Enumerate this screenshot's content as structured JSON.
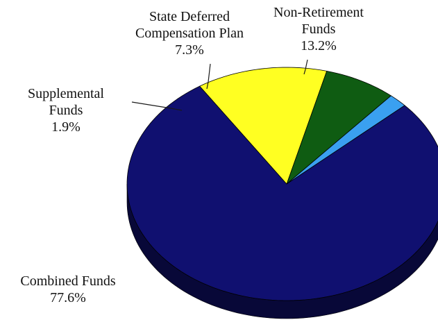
{
  "chart_data": {
    "type": "pie",
    "style": "3d",
    "title": "",
    "slices": [
      {
        "label_lines": [
          "Combined Funds"
        ],
        "value_text": "77.6%",
        "value": 77.6,
        "color": "#101070",
        "side_color": "#080838"
      },
      {
        "label_lines": [
          "Supplemental",
          "Funds"
        ],
        "value_text": "1.9%",
        "value": 1.9,
        "color": "#3aa0f0",
        "side_color": "#1f5f99"
      },
      {
        "label_lines": [
          "State Deferred",
          "Compensation Plan"
        ],
        "value_text": "7.3%",
        "value": 7.3,
        "color": "#0f5c12",
        "side_color": "#073008"
      },
      {
        "label_lines": [
          "Non-Retirement",
          "Funds"
        ],
        "value_text": "13.2%",
        "value": 13.2,
        "color": "#ffff22",
        "side_color": "#9a9a00"
      }
    ],
    "legend": "none",
    "labels": "outside-with-leader-lines"
  }
}
